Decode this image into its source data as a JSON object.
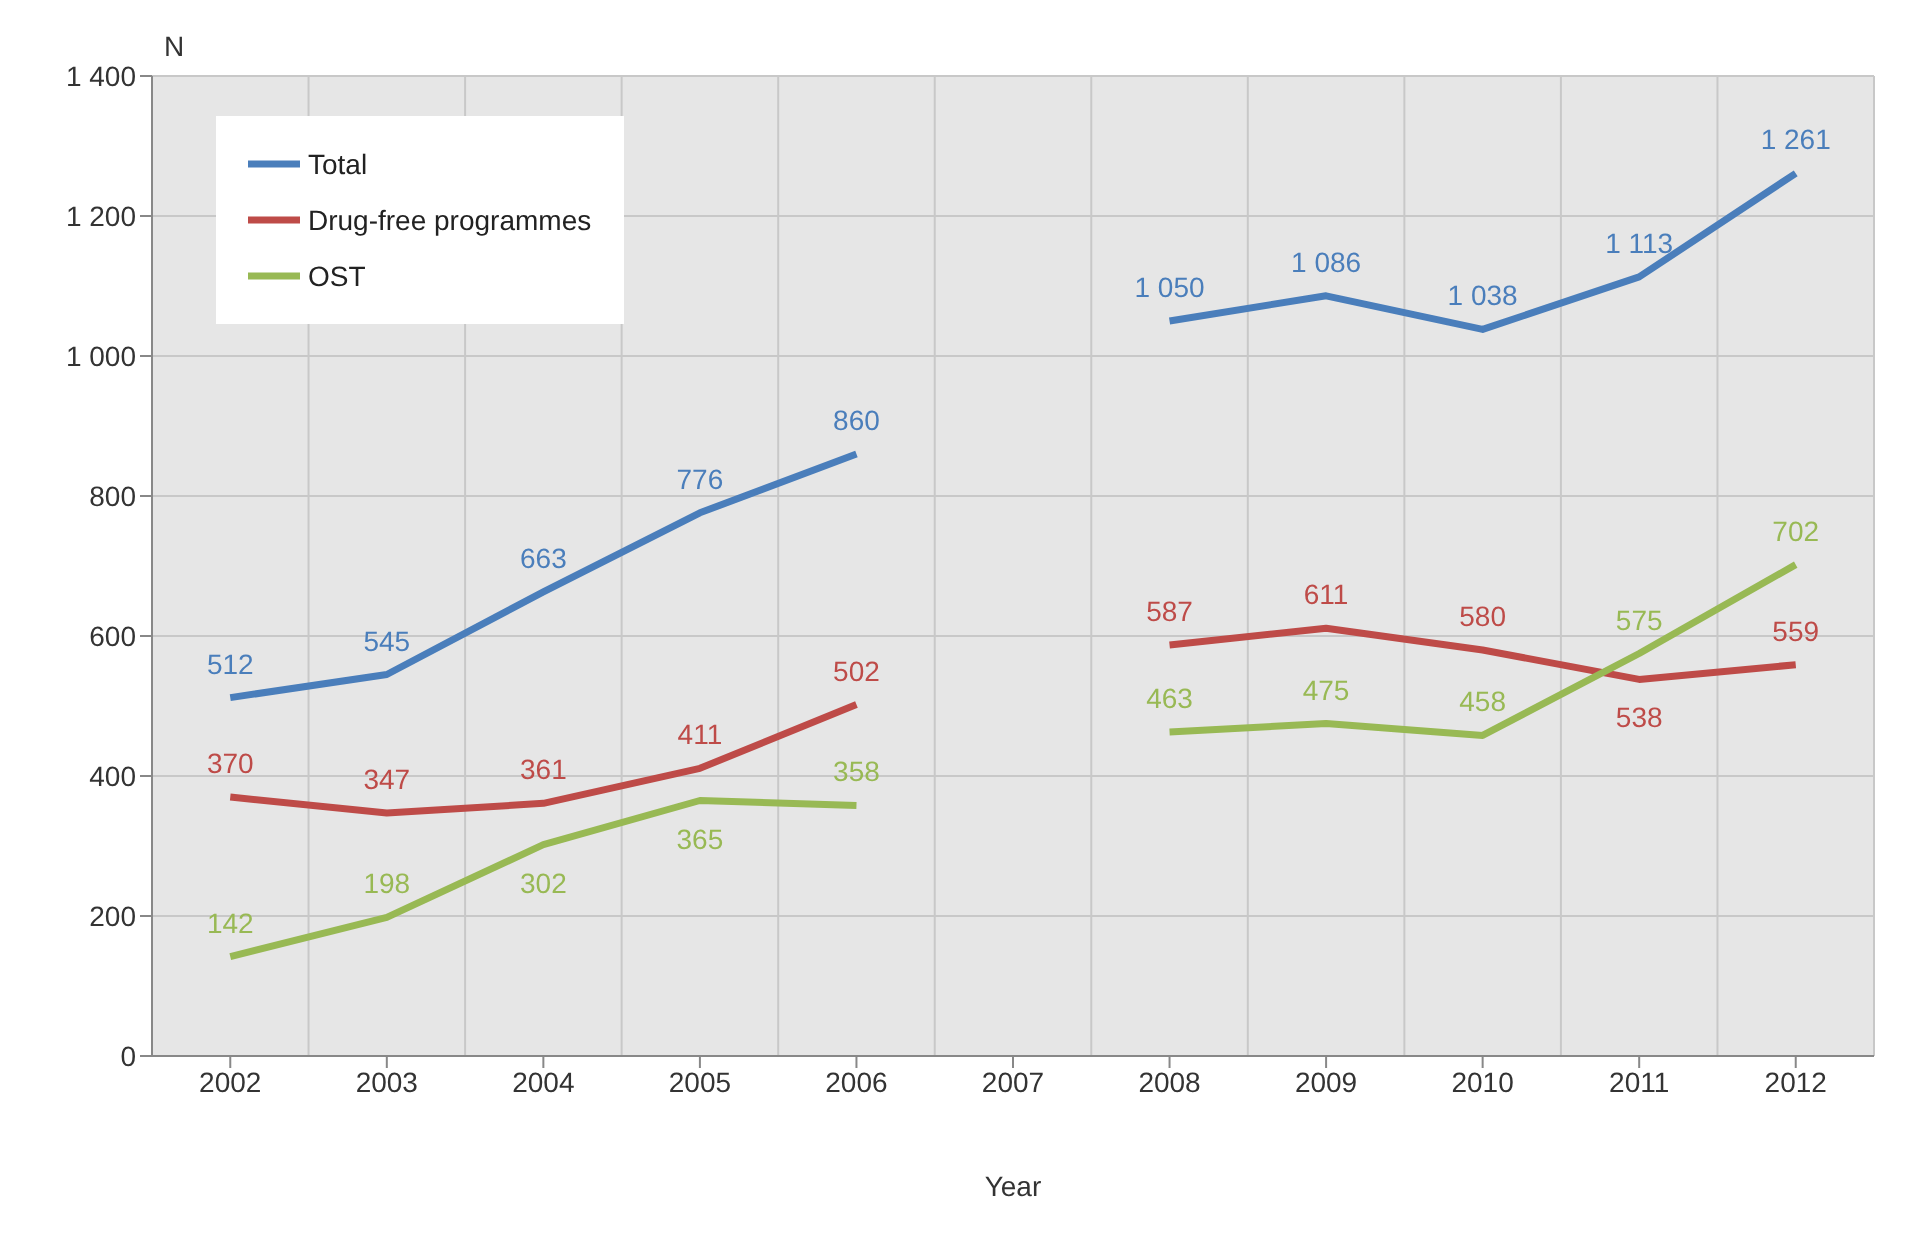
{
  "chart_data": {
    "type": "line",
    "ylabel": "N",
    "xlabel": "Year",
    "categories": [
      "2002",
      "2003",
      "2004",
      "2005",
      "2006",
      "2007",
      "2008",
      "2009",
      "2010",
      "2011",
      "2012"
    ],
    "series": [
      {
        "name": "Total",
        "color": "#4a7ebb",
        "values": [
          512,
          545,
          663,
          776,
          860,
          null,
          1050,
          1086,
          1038,
          1113,
          1261
        ],
        "value_labels": [
          "512",
          "545",
          "663",
          "776",
          "860",
          null,
          "1 050",
          "1 086",
          "1 038",
          "1 113",
          "1 261"
        ]
      },
      {
        "name": "Drug-free programmes",
        "color": "#be4b48",
        "values": [
          370,
          347,
          361,
          411,
          502,
          null,
          587,
          611,
          580,
          538,
          559
        ],
        "value_labels": [
          "370",
          "347",
          "361",
          "411",
          "502",
          null,
          "587",
          "611",
          "580",
          "538",
          "559"
        ]
      },
      {
        "name": "OST",
        "color": "#98b954",
        "values": [
          142,
          198,
          302,
          365,
          358,
          null,
          463,
          475,
          458,
          575,
          702
        ],
        "value_labels": [
          "142",
          "198",
          "302",
          "365",
          "358",
          null,
          "463",
          "475",
          "458",
          "575",
          "702"
        ]
      }
    ],
    "ylim": [
      0,
      1400
    ],
    "yticks": [
      0,
      200,
      400,
      600,
      800,
      {
        "value": 1000,
        "label": "1 000"
      },
      {
        "value": 1200,
        "label": "1 200"
      },
      {
        "value": 1400,
        "label": "1 400"
      }
    ],
    "grid": true,
    "legend": "top left",
    "marker": "none",
    "line_style": "solid"
  }
}
